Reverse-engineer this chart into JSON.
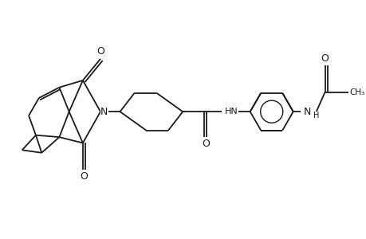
{
  "background_color": "#ffffff",
  "line_color": "#1a1a1a",
  "line_width": 1.3,
  "figsize": [
    4.6,
    3.0
  ],
  "dpi": 100,
  "xlim": [
    0,
    9.2
  ],
  "ylim": [
    0,
    6.0
  ]
}
